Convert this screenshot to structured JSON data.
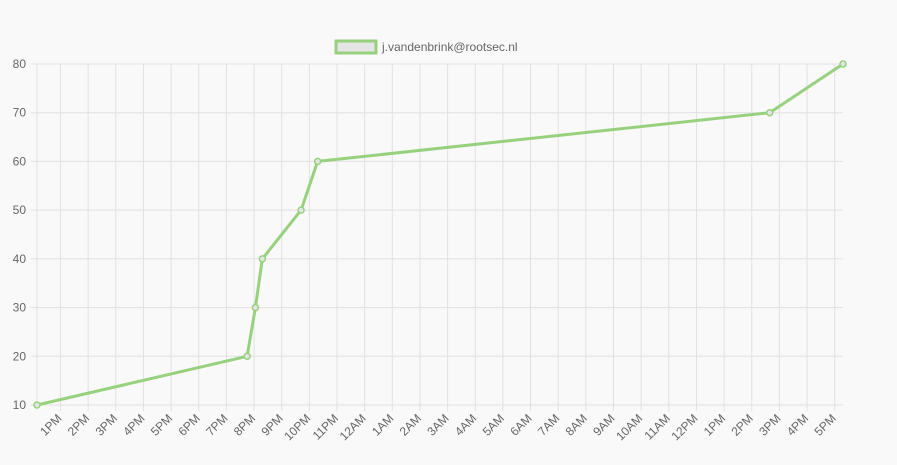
{
  "chart_data": {
    "type": "line",
    "legend": {
      "position": "top"
    },
    "grid": true,
    "ylim": [
      10,
      80
    ],
    "yticks": [
      10,
      20,
      30,
      40,
      50,
      60,
      70,
      80
    ],
    "x_tick_labels": [
      "1PM",
      "2PM",
      "3PM",
      "4PM",
      "5PM",
      "6PM",
      "7PM",
      "8PM",
      "9PM",
      "10PM",
      "11PM",
      "12AM",
      "1AM",
      "2AM",
      "3AM",
      "4AM",
      "5AM",
      "6AM",
      "7AM",
      "8AM",
      "9AM",
      "10AM",
      "11AM",
      "12PM",
      "1PM",
      "2PM",
      "3PM",
      "4PM",
      "5PM"
    ],
    "x_tick_hours": [
      13,
      14,
      15,
      16,
      17,
      18,
      19,
      20,
      21,
      22,
      23,
      24,
      25,
      26,
      27,
      28,
      29,
      30,
      31,
      32,
      33,
      34,
      35,
      36,
      37,
      38,
      39,
      40,
      41
    ],
    "xlim_hours": [
      12.15,
      41.3
    ],
    "series": [
      {
        "name": "j.vandenbrink@rootsec.nl",
        "color": "#97d17e",
        "fill": "#e5e5e5",
        "points": [
          {
            "x_hour": 12.15,
            "y": 10
          },
          {
            "x_hour": 19.75,
            "y": 20
          },
          {
            "x_hour": 20.05,
            "y": 30
          },
          {
            "x_hour": 20.3,
            "y": 40
          },
          {
            "x_hour": 21.7,
            "y": 50
          },
          {
            "x_hour": 22.3,
            "y": 60
          },
          {
            "x_hour": 38.65,
            "y": 70
          },
          {
            "x_hour": 41.3,
            "y": 80
          }
        ]
      }
    ]
  }
}
